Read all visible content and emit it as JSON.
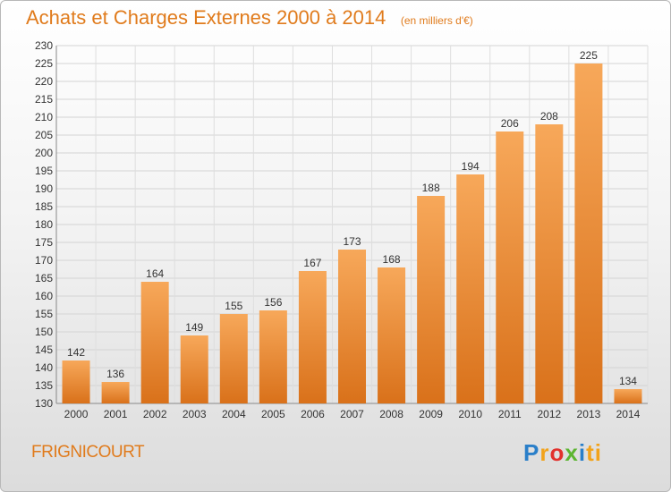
{
  "header": {
    "title": "Achats et Charges Externes 2000 à 2014",
    "subtitle": "(en milliers d'€)"
  },
  "footer": {
    "commune": "FRIGNICOURT",
    "logo": [
      "P",
      "r",
      "o",
      "x",
      "i",
      "ti"
    ]
  },
  "colors": {
    "bar_top": "#f7a85a",
    "bar_bottom": "#d9711a",
    "accent": "#e07b1c"
  },
  "chart_data": {
    "type": "bar",
    "title": "Achats et Charges Externes 2000 à 2014",
    "subtitle": "(en milliers d'€)",
    "categories": [
      "2000",
      "2001",
      "2002",
      "2003",
      "2004",
      "2005",
      "2006",
      "2007",
      "2008",
      "2009",
      "2010",
      "2011",
      "2012",
      "2013",
      "2014"
    ],
    "values": [
      142,
      136,
      164,
      149,
      155,
      156,
      167,
      173,
      168,
      188,
      194,
      206,
      208,
      225,
      134
    ],
    "ylim": [
      130,
      230
    ],
    "yticks": [
      130,
      135,
      140,
      145,
      150,
      155,
      160,
      165,
      170,
      175,
      180,
      185,
      190,
      195,
      200,
      205,
      210,
      215,
      220,
      225,
      230
    ],
    "grid": true,
    "data_labels": true
  }
}
